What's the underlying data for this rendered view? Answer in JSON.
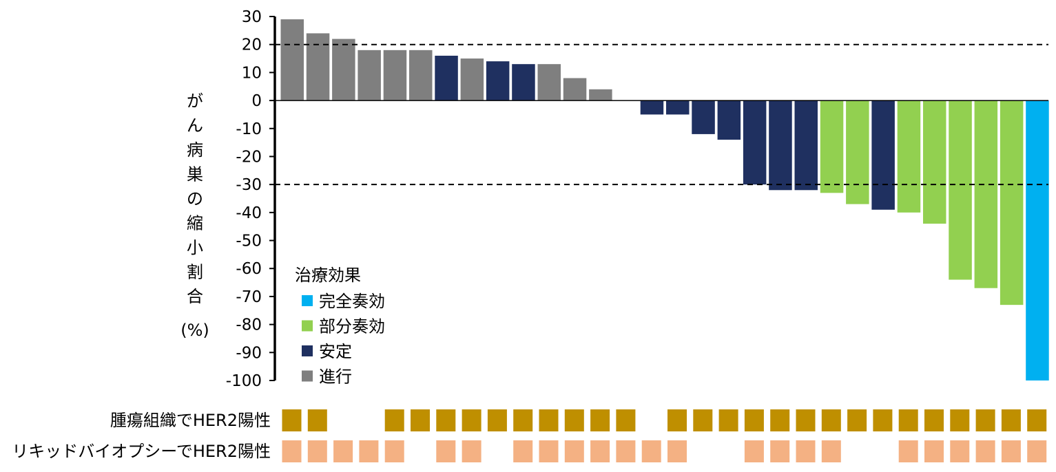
{
  "chart_data": {
    "type": "bar",
    "ylabel": "がん病巣の縮小割合",
    "ylabel_unit": "(%)",
    "ylim": [
      -100,
      30
    ],
    "yticks": [
      "30",
      "20",
      "10",
      "0",
      "-10",
      "-20",
      "-30",
      "-40",
      "-50",
      "-60",
      "-70",
      "-80",
      "-90",
      "-100"
    ],
    "reference_lines": [
      20,
      -30
    ],
    "values": [
      29,
      24,
      22,
      18,
      18,
      18,
      16,
      15,
      14,
      13,
      13,
      8,
      4,
      null,
      -5,
      -5,
      -12,
      -14,
      -30,
      -32,
      -32,
      -33,
      -37,
      -39,
      -40,
      -44,
      -64,
      -67,
      -73,
      -100
    ],
    "response": [
      "progression",
      "progression",
      "progression",
      "progression",
      "progression",
      "progression",
      "stable",
      "progression",
      "stable",
      "stable",
      "progression",
      "progression",
      "progression",
      null,
      "stable",
      "stable",
      "stable",
      "stable",
      "stable",
      "stable",
      "stable",
      "partial",
      "partial",
      "stable",
      "partial",
      "partial",
      "partial",
      "partial",
      "partial",
      "complete"
    ],
    "legend": {
      "title": "治療効果",
      "position": "lower-left",
      "items": [
        {
          "key": "complete",
          "label": "完全奏効",
          "color": "#00B0F0"
        },
        {
          "key": "partial",
          "label": "部分奏効",
          "color": "#92D050"
        },
        {
          "key": "stable",
          "label": "安定",
          "color": "#1F3060"
        },
        {
          "key": "progression",
          "label": "進行",
          "color": "#7F7F7F"
        }
      ]
    },
    "marker_rows": [
      {
        "label": "腫瘍組織でHER2陽性",
        "color": "#BF8F00",
        "present": [
          1,
          1,
          0,
          0,
          1,
          1,
          1,
          1,
          1,
          1,
          1,
          1,
          1,
          1,
          0,
          1,
          1,
          1,
          1,
          1,
          1,
          1,
          1,
          1,
          1,
          1,
          1,
          1,
          1,
          1
        ]
      },
      {
        "label": "リキッドバイオプシーでHER2陽性",
        "color": "#F4B183",
        "present": [
          1,
          1,
          1,
          1,
          1,
          0,
          1,
          1,
          0,
          1,
          1,
          1,
          1,
          1,
          1,
          1,
          0,
          0,
          1,
          1,
          1,
          1,
          0,
          0,
          1,
          1,
          1,
          1,
          1,
          1
        ]
      }
    ],
    "grid": false
  }
}
